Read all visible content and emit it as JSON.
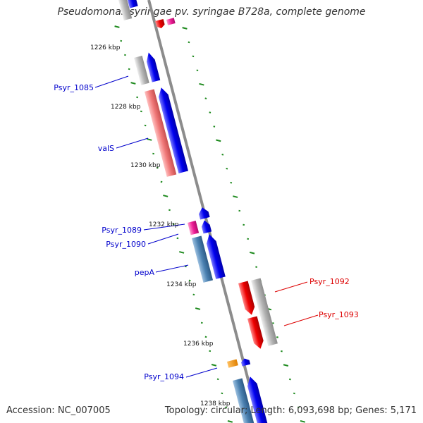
{
  "title": "Pseudomonas syringae pv. syringae B728a, complete genome",
  "footer": {
    "accession": "Accession: NC_007005",
    "topology": "Topology: circular; Length: 6,093,698 bp; Genes: 5,171"
  },
  "scale_labels": [
    "1226 kbp",
    "1228 kbp",
    "1230 kbp",
    "1232 kbp",
    "1234 kbp",
    "1236 kbp",
    "1238 kbp"
  ],
  "gene_labels": [
    {
      "name": "Psyr_1085",
      "color": "#0000cc"
    },
    {
      "name": "valS",
      "color": "#0000cc"
    },
    {
      "name": "Psyr_1089",
      "color": "#0000cc"
    },
    {
      "name": "Psyr_1090",
      "color": "#0000cc"
    },
    {
      "name": "pepA",
      "color": "#0000cc"
    },
    {
      "name": "Psyr_1092",
      "color": "#dd0000"
    },
    {
      "name": "Psyr_1093",
      "color": "#dd0000"
    },
    {
      "name": "Psyr_1094",
      "color": "#0000cc"
    }
  ],
  "colors": {
    "backbone": "#8c8c8c",
    "tick": "#1e8a1e",
    "forward": "#0000ee",
    "reverse": "#ee0000",
    "cds_gray": "#b4b4b4",
    "cds_pink": "#f07878",
    "cds_steel": "#4a80b0",
    "magenta": "#ee1e96",
    "orange": "#f08c00"
  }
}
